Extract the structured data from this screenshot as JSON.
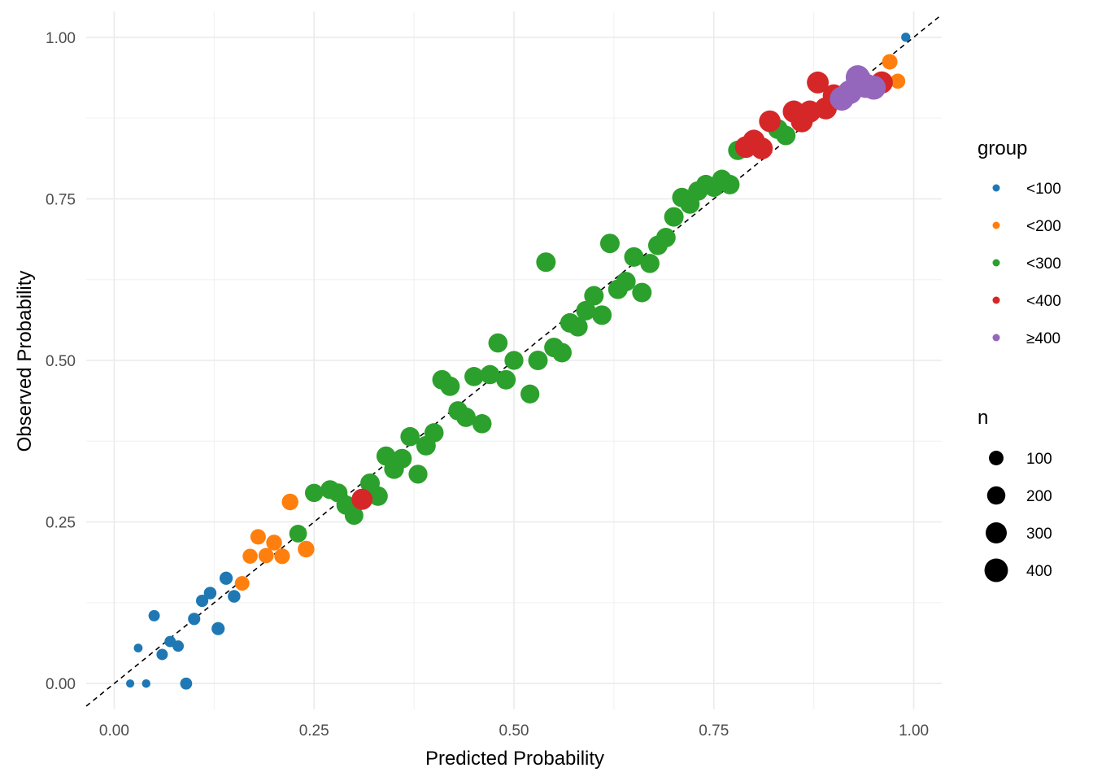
{
  "chart_data": {
    "type": "scatter",
    "title": "",
    "xlabel": "Predicted Probability",
    "ylabel": "Observed Probability",
    "xlim": [
      -0.035,
      1.035
    ],
    "ylim": [
      -0.04,
      1.04
    ],
    "x_ticks": [
      0,
      0.25,
      0.5,
      0.75,
      1
    ],
    "x_tick_labels": [
      "0.00",
      "0.25",
      "0.50",
      "0.75",
      "1.00"
    ],
    "y_ticks": [
      0,
      0.25,
      0.5,
      0.75,
      1
    ],
    "y_tick_labels": [
      "0.00",
      "0.25",
      "0.50",
      "0.75",
      "1.00"
    ],
    "grid": true,
    "reference_line": {
      "type": "identity",
      "style": "dashed",
      "color": "#000000"
    },
    "legend_position": "right",
    "color_legend": {
      "title": "group",
      "entries": [
        {
          "label": "<100",
          "color": "#1F78B4"
        },
        {
          "label": "<200",
          "color": "#FF7F0E"
        },
        {
          "label": "<300",
          "color": "#2CA02C"
        },
        {
          "label": "<400",
          "color": "#D62728"
        },
        {
          "label": "≥400",
          "color": "#9467BD"
        }
      ]
    },
    "size_legend": {
      "title": "n",
      "entries": [
        {
          "label": "100",
          "value": 100
        },
        {
          "label": "200",
          "value": 200
        },
        {
          "label": "300",
          "value": 300
        },
        {
          "label": "400",
          "value": 400
        }
      ]
    },
    "series": [
      {
        "name": "<100",
        "color": "#1F78B4",
        "points": [
          [
            0.02,
            0.0,
            8
          ],
          [
            0.03,
            0.055,
            12
          ],
          [
            0.04,
            0.0,
            10
          ],
          [
            0.05,
            0.105,
            40
          ],
          [
            0.06,
            0.045,
            40
          ],
          [
            0.07,
            0.065,
            40
          ],
          [
            0.08,
            0.058,
            40
          ],
          [
            0.09,
            0.0,
            50
          ],
          [
            0.1,
            0.1,
            55
          ],
          [
            0.11,
            0.128,
            55
          ],
          [
            0.12,
            0.14,
            60
          ],
          [
            0.13,
            0.085,
            70
          ],
          [
            0.14,
            0.163,
            70
          ],
          [
            0.15,
            0.135,
            60
          ],
          [
            0.99,
            1.0,
            15
          ]
        ]
      },
      {
        "name": "<200",
        "color": "#FF7F0E",
        "points": [
          [
            0.16,
            0.155,
            100
          ],
          [
            0.17,
            0.197,
            110
          ],
          [
            0.18,
            0.227,
            120
          ],
          [
            0.19,
            0.198,
            115
          ],
          [
            0.2,
            0.218,
            130
          ],
          [
            0.21,
            0.197,
            125
          ],
          [
            0.22,
            0.281,
            150
          ],
          [
            0.24,
            0.208,
            150
          ],
          [
            0.97,
            0.962,
            120
          ],
          [
            0.98,
            0.932,
            110
          ]
        ]
      },
      {
        "name": "<300",
        "color": "#2CA02C",
        "points": [
          [
            0.23,
            0.232,
            180
          ],
          [
            0.25,
            0.295,
            200
          ],
          [
            0.27,
            0.3,
            220
          ],
          [
            0.28,
            0.295,
            220
          ],
          [
            0.29,
            0.276,
            230
          ],
          [
            0.3,
            0.26,
            210
          ],
          [
            0.32,
            0.31,
            240
          ],
          [
            0.33,
            0.29,
            240
          ],
          [
            0.34,
            0.352,
            230
          ],
          [
            0.35,
            0.332,
            250
          ],
          [
            0.37,
            0.382,
            230
          ],
          [
            0.36,
            0.348,
            240
          ],
          [
            0.38,
            0.324,
            220
          ],
          [
            0.39,
            0.368,
            240
          ],
          [
            0.4,
            0.388,
            230
          ],
          [
            0.41,
            0.47,
            240
          ],
          [
            0.42,
            0.46,
            240
          ],
          [
            0.43,
            0.422,
            230
          ],
          [
            0.44,
            0.412,
            240
          ],
          [
            0.45,
            0.475,
            230
          ],
          [
            0.46,
            0.402,
            230
          ],
          [
            0.47,
            0.478,
            230
          ],
          [
            0.48,
            0.527,
            230
          ],
          [
            0.49,
            0.47,
            240
          ],
          [
            0.5,
            0.5,
            220
          ],
          [
            0.52,
            0.448,
            220
          ],
          [
            0.53,
            0.5,
            240
          ],
          [
            0.54,
            0.652,
            240
          ],
          [
            0.55,
            0.52,
            240
          ],
          [
            0.56,
            0.512,
            240
          ],
          [
            0.57,
            0.558,
            240
          ],
          [
            0.58,
            0.552,
            240
          ],
          [
            0.59,
            0.577,
            240
          ],
          [
            0.6,
            0.6,
            240
          ],
          [
            0.61,
            0.57,
            240
          ],
          [
            0.62,
            0.681,
            240
          ],
          [
            0.63,
            0.61,
            240
          ],
          [
            0.64,
            0.622,
            240
          ],
          [
            0.65,
            0.66,
            240
          ],
          [
            0.66,
            0.605,
            240
          ],
          [
            0.67,
            0.65,
            230
          ],
          [
            0.68,
            0.678,
            240
          ],
          [
            0.69,
            0.69,
            240
          ],
          [
            0.7,
            0.722,
            240
          ],
          [
            0.71,
            0.752,
            240
          ],
          [
            0.72,
            0.742,
            240
          ],
          [
            0.73,
            0.762,
            240
          ],
          [
            0.74,
            0.772,
            240
          ],
          [
            0.75,
            0.768,
            240
          ],
          [
            0.76,
            0.78,
            240
          ],
          [
            0.77,
            0.772,
            240
          ],
          [
            0.78,
            0.825,
            240
          ],
          [
            0.83,
            0.858,
            250
          ],
          [
            0.84,
            0.848,
            240
          ]
        ]
      },
      {
        "name": "<400",
        "color": "#D62728",
        "points": [
          [
            0.31,
            0.285,
            300
          ],
          [
            0.79,
            0.83,
            320
          ],
          [
            0.8,
            0.84,
            330
          ],
          [
            0.81,
            0.828,
            330
          ],
          [
            0.82,
            0.87,
            320
          ],
          [
            0.85,
            0.885,
            340
          ],
          [
            0.86,
            0.87,
            340
          ],
          [
            0.87,
            0.885,
            340
          ],
          [
            0.88,
            0.93,
            330
          ],
          [
            0.89,
            0.89,
            340
          ],
          [
            0.9,
            0.91,
            340
          ],
          [
            0.96,
            0.93,
            340
          ]
        ]
      },
      {
        "name": "≥400",
        "color": "#9467BD",
        "points": [
          [
            0.91,
            0.905,
            420
          ],
          [
            0.92,
            0.915,
            420
          ],
          [
            0.93,
            0.938,
            430
          ],
          [
            0.94,
            0.925,
            440
          ],
          [
            0.95,
            0.922,
            420
          ]
        ]
      }
    ]
  }
}
